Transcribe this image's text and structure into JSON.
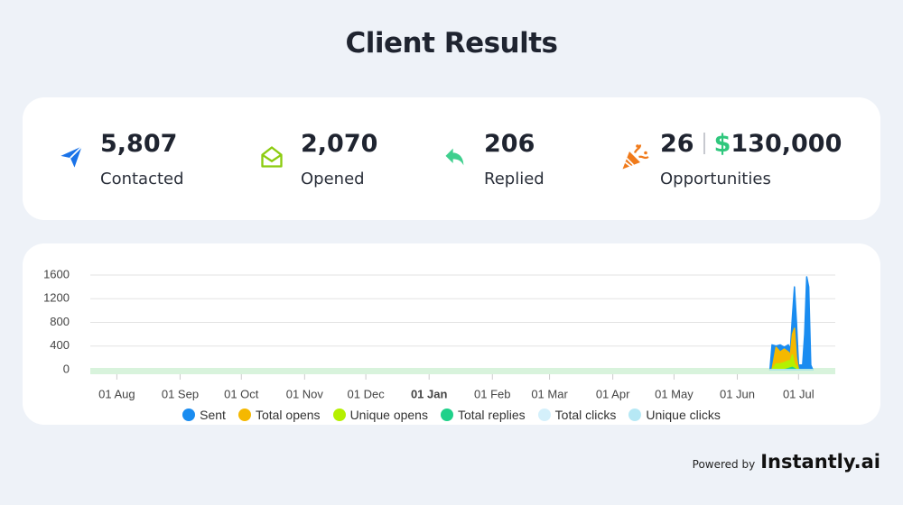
{
  "header": {
    "title": "Client Results"
  },
  "stats": [
    {
      "value": "5,807",
      "label": "Contacted"
    },
    {
      "value": "2,070",
      "label": "Opened"
    },
    {
      "value": "206",
      "label": "Replied"
    },
    {
      "value": "26",
      "amount": "$130,000",
      "label": "Opportunities"
    }
  ],
  "chart_data": {
    "type": "area",
    "x": [
      320,
      321,
      323,
      325,
      327,
      329,
      330,
      331,
      332,
      333,
      334,
      336,
      337,
      338,
      339,
      340,
      341
    ],
    "series": [
      {
        "name": "Sent",
        "color": "#1a8cf0",
        "values": [
          0,
          420,
          400,
          420,
          380,
          420,
          350,
          900,
          1400,
          800,
          80,
          80,
          600,
          1570,
          1400,
          80,
          0
        ]
      },
      {
        "name": "Total opens",
        "color": "#f5b800",
        "values": [
          0,
          0,
          380,
          300,
          350,
          300,
          250,
          600,
          700,
          200,
          0,
          0,
          0,
          0,
          0,
          0,
          0
        ]
      },
      {
        "name": "Unique opens",
        "color": "#b5f000",
        "values": [
          0,
          0,
          100,
          100,
          120,
          150,
          150,
          250,
          100,
          50,
          0,
          0,
          0,
          0,
          0,
          0,
          0
        ]
      },
      {
        "name": "Total replies",
        "color": "#1fd18a",
        "values": [
          0,
          0,
          0,
          0,
          0,
          20,
          30,
          40,
          20,
          0,
          0,
          0,
          0,
          0,
          0,
          0,
          0
        ]
      },
      {
        "name": "Total clicks",
        "color": "#d4f0fb",
        "values": [
          0,
          0,
          0,
          0,
          0,
          0,
          0,
          0,
          0,
          0,
          0,
          0,
          0,
          0,
          0,
          0,
          0
        ]
      },
      {
        "name": "Unique clicks",
        "color": "#b6e8f5",
        "values": [
          0,
          0,
          0,
          0,
          0,
          0,
          0,
          0,
          0,
          0,
          0,
          0,
          0,
          0,
          0,
          0,
          0
        ]
      }
    ],
    "xlim": [
      -13,
      352
    ],
    "xticks": [
      {
        "value": 0,
        "label": "01 Aug"
      },
      {
        "value": 31,
        "label": "01 Sep"
      },
      {
        "value": 61,
        "label": "01 Oct"
      },
      {
        "value": 92,
        "label": "01 Nov"
      },
      {
        "value": 122,
        "label": "01 Dec"
      },
      {
        "value": 153,
        "label": "01 Jan"
      },
      {
        "value": 184,
        "label": "01 Feb"
      },
      {
        "value": 212,
        "label": "01 Mar"
      },
      {
        "value": 243,
        "label": "01 Apr"
      },
      {
        "value": 273,
        "label": "01 May"
      },
      {
        "value": 304,
        "label": "01 Jun"
      },
      {
        "value": 334,
        "label": "01 Jul"
      }
    ],
    "ylim": [
      0,
      1600
    ],
    "yticks": [
      0,
      400,
      800,
      1200,
      1600
    ],
    "grid": true
  },
  "footer": {
    "powered_by": "Powered by",
    "brand": "Instantly.ai"
  }
}
